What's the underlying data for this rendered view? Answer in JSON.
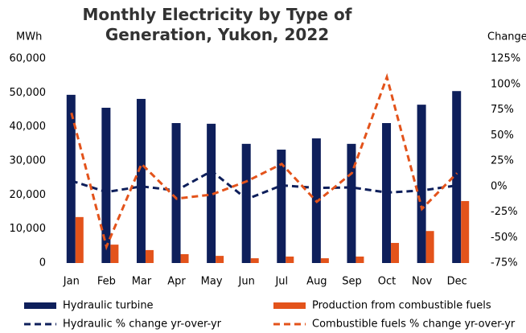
{
  "chart_data": {
    "type": "bar",
    "title": "Monthly Electricity by Type of Generation, Yukon, 2022",
    "y_label": "MWh",
    "y2_label": "Change",
    "categories": [
      "Jan",
      "Feb",
      "Mar",
      "Apr",
      "May",
      "Jun",
      "Jul",
      "Aug",
      "Sep",
      "Oct",
      "Nov",
      "Dec"
    ],
    "series": [
      {
        "name": "Hydraulic turbine",
        "type": "bar",
        "color": "#0e1f5b",
        "values": [
          49400,
          45600,
          48200,
          41100,
          40900,
          35000,
          33300,
          36600,
          35000,
          41100,
          46500,
          50500
        ]
      },
      {
        "name": "Production from combustible fuels",
        "type": "bar",
        "color": "#e3531b",
        "values": [
          13500,
          5400,
          3800,
          2600,
          2100,
          1400,
          1900,
          1400,
          1900,
          5900,
          9400,
          18200
        ]
      },
      {
        "name": "Hydraulic % change yr-over-yr",
        "type": "line",
        "axis": "y2",
        "color": "#0e1f5b",
        "values": [
          5.5,
          -5.5,
          0,
          -4,
          15,
          -12.5,
          1,
          -1.5,
          -1,
          -6,
          -4,
          1
        ]
      },
      {
        "name": "Combustible fuels % change yr-over-yr",
        "type": "line",
        "axis": "y2",
        "color": "#e3531b",
        "values": [
          72,
          -59,
          22,
          -12,
          -8,
          5,
          22,
          -15,
          13,
          107,
          -22,
          13
        ]
      }
    ],
    "ylim": [
      0,
      60000
    ],
    "yticks": [
      0,
      {
        "value": 10000,
        "label": "10,000"
      },
      {
        "value": 20000,
        "label": "20,000"
      },
      {
        "value": 30000,
        "label": "30,000"
      },
      {
        "value": 40000,
        "label": "40,000"
      },
      {
        "value": 50000,
        "label": "50,000"
      },
      {
        "value": 60000,
        "label": "60,000"
      }
    ],
    "y2lim": [
      -75,
      125
    ],
    "y2ticks": [
      {
        "value": -75,
        "label": "-75%"
      },
      {
        "value": -50,
        "label": "-50%"
      },
      {
        "value": -25,
        "label": "-25%"
      },
      {
        "value": 0,
        "label": "0%"
      },
      {
        "value": 25,
        "label": "25%"
      },
      {
        "value": 50,
        "label": "50%"
      },
      {
        "value": 75,
        "label": "75%"
      },
      {
        "value": 100,
        "label": "100%"
      },
      {
        "value": 125,
        "label": "125%"
      }
    ],
    "legend": "bottom"
  }
}
